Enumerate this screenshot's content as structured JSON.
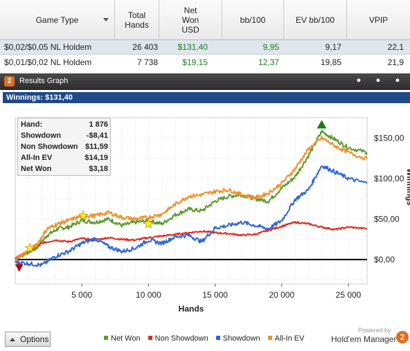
{
  "table": {
    "columns": [
      "Game Type",
      "Total\nHands",
      "Net\nWon\nUSD",
      "bb/100",
      "EV bb/100",
      "VPIP"
    ],
    "rows": [
      {
        "game_type": "$0,02/$0,05 NL Holdem",
        "total_hands": "26 403",
        "net_won": "$131,40",
        "bb100": "9,95",
        "ev_bb100": "9,17",
        "vpip": "22,1"
      },
      {
        "game_type": "$0,01/$0,02 NL Holdem",
        "total_hands": "7 738",
        "net_won": "$19,15",
        "bb100": "12,37",
        "ev_bb100": "19,85",
        "vpip": "21,9"
      }
    ]
  },
  "results_graph": {
    "logo": "2",
    "title": "Results Graph",
    "winnings_label": "Winnings: $131,40"
  },
  "stats": [
    {
      "key": "Hand:",
      "value": "1 876"
    },
    {
      "key": "Showdown",
      "value": "-$8,41"
    },
    {
      "key": "Non Showdown",
      "value": "$11,59"
    },
    {
      "key": "All-In EV",
      "value": "$14,19"
    },
    {
      "key": "Net Won",
      "value": "$3,18"
    }
  ],
  "chart_data": {
    "type": "line",
    "xlabel": "Hands",
    "ylabel": "Winnings",
    "xlim": [
      0,
      26403
    ],
    "ylim": [
      -30,
      175
    ],
    "xticks": [
      5000,
      10000,
      15000,
      20000,
      25000
    ],
    "xtick_labels": [
      "5 000",
      "10 000",
      "15 000",
      "20 000",
      "25 000"
    ],
    "yticks": [
      0,
      50,
      100,
      150
    ],
    "ytick_labels": [
      "$0,00",
      "$50,00",
      "$100,00",
      "$150,00"
    ],
    "grid": true,
    "legend_position": "bottom",
    "series": [
      {
        "name": "Net Won",
        "color": "#5a9a2e",
        "points": [
          [
            0,
            0
          ],
          [
            800,
            8
          ],
          [
            1600,
            14
          ],
          [
            2400,
            30
          ],
          [
            3200,
            38
          ],
          [
            4000,
            40
          ],
          [
            5000,
            48
          ],
          [
            6000,
            46
          ],
          [
            7000,
            50
          ],
          [
            8000,
            42
          ],
          [
            9000,
            46
          ],
          [
            10000,
            48
          ],
          [
            11000,
            44
          ],
          [
            12000,
            55
          ],
          [
            13000,
            62
          ],
          [
            14000,
            60
          ],
          [
            15000,
            72
          ],
          [
            16000,
            78
          ],
          [
            17000,
            80
          ],
          [
            18000,
            75
          ],
          [
            19000,
            72
          ],
          [
            20000,
            88
          ],
          [
            21000,
            102
          ],
          [
            22000,
            128
          ],
          [
            23000,
            158
          ],
          [
            24000,
            148
          ],
          [
            25000,
            138
          ],
          [
            26403,
            132
          ]
        ]
      },
      {
        "name": "Non Showdown",
        "color": "#e02a20",
        "points": [
          [
            0,
            2
          ],
          [
            1000,
            10
          ],
          [
            2000,
            20
          ],
          [
            3000,
            24
          ],
          [
            4000,
            22
          ],
          [
            5000,
            26
          ],
          [
            6000,
            24
          ],
          [
            7000,
            27
          ],
          [
            8000,
            25
          ],
          [
            9000,
            24
          ],
          [
            10000,
            27
          ],
          [
            11000,
            29
          ],
          [
            12000,
            31
          ],
          [
            13000,
            33
          ],
          [
            14000,
            35
          ],
          [
            15000,
            33
          ],
          [
            16000,
            32
          ],
          [
            17000,
            30
          ],
          [
            18000,
            31
          ],
          [
            19000,
            36
          ],
          [
            20000,
            41
          ],
          [
            21000,
            46
          ],
          [
            22000,
            44
          ],
          [
            23000,
            40
          ],
          [
            24000,
            37
          ],
          [
            25000,
            40
          ],
          [
            26403,
            38
          ]
        ]
      },
      {
        "name": "Showdown",
        "color": "#2f64e0",
        "points": [
          [
            0,
            -3
          ],
          [
            1000,
            -5
          ],
          [
            2000,
            -7
          ],
          [
            3000,
            4
          ],
          [
            4000,
            10
          ],
          [
            5000,
            20
          ],
          [
            6000,
            26
          ],
          [
            7000,
            16
          ],
          [
            8000,
            10
          ],
          [
            9000,
            14
          ],
          [
            10000,
            24
          ],
          [
            11000,
            20
          ],
          [
            12000,
            28
          ],
          [
            13000,
            30
          ],
          [
            14000,
            22
          ],
          [
            15000,
            39
          ],
          [
            16000,
            42
          ],
          [
            17000,
            46
          ],
          [
            18000,
            42
          ],
          [
            19000,
            38
          ],
          [
            20000,
            48
          ],
          [
            21000,
            74
          ],
          [
            22000,
            86
          ],
          [
            23000,
            116
          ],
          [
            24000,
            108
          ],
          [
            25000,
            100
          ],
          [
            26403,
            94
          ]
        ]
      },
      {
        "name": "All-In EV",
        "color": "#f0902a",
        "points": [
          [
            0,
            1
          ],
          [
            800,
            9
          ],
          [
            1600,
            18
          ],
          [
            2400,
            38
          ],
          [
            3200,
            44
          ],
          [
            4000,
            48
          ],
          [
            5000,
            54
          ],
          [
            6000,
            54
          ],
          [
            7000,
            58
          ],
          [
            8000,
            52
          ],
          [
            9000,
            50
          ],
          [
            10000,
            52
          ],
          [
            11000,
            56
          ],
          [
            12000,
            68
          ],
          [
            13000,
            78
          ],
          [
            14000,
            80
          ],
          [
            15000,
            84
          ],
          [
            16000,
            86
          ],
          [
            17000,
            80
          ],
          [
            18000,
            76
          ],
          [
            19000,
            82
          ],
          [
            20000,
            94
          ],
          [
            21000,
            112
          ],
          [
            22000,
            136
          ],
          [
            23000,
            150
          ],
          [
            24000,
            140
          ],
          [
            25000,
            132
          ],
          [
            26403,
            124
          ]
        ]
      }
    ],
    "markers": [
      {
        "type": "star",
        "x": 1100,
        "y": 14
      },
      {
        "type": "star",
        "x": 5100,
        "y": 54
      },
      {
        "type": "star",
        "x": 10000,
        "y": 44
      },
      {
        "type": "triangle-up",
        "color": "#1a7a1a",
        "x": 23000,
        "y": 166
      },
      {
        "type": "triangle-down",
        "color": "#c00000",
        "x": 300,
        "y": -10
      }
    ]
  },
  "footer": {
    "options_label": "Options",
    "powered_by": "Powered by",
    "brand": "Hold'em Manager",
    "brand_logo": "2"
  }
}
